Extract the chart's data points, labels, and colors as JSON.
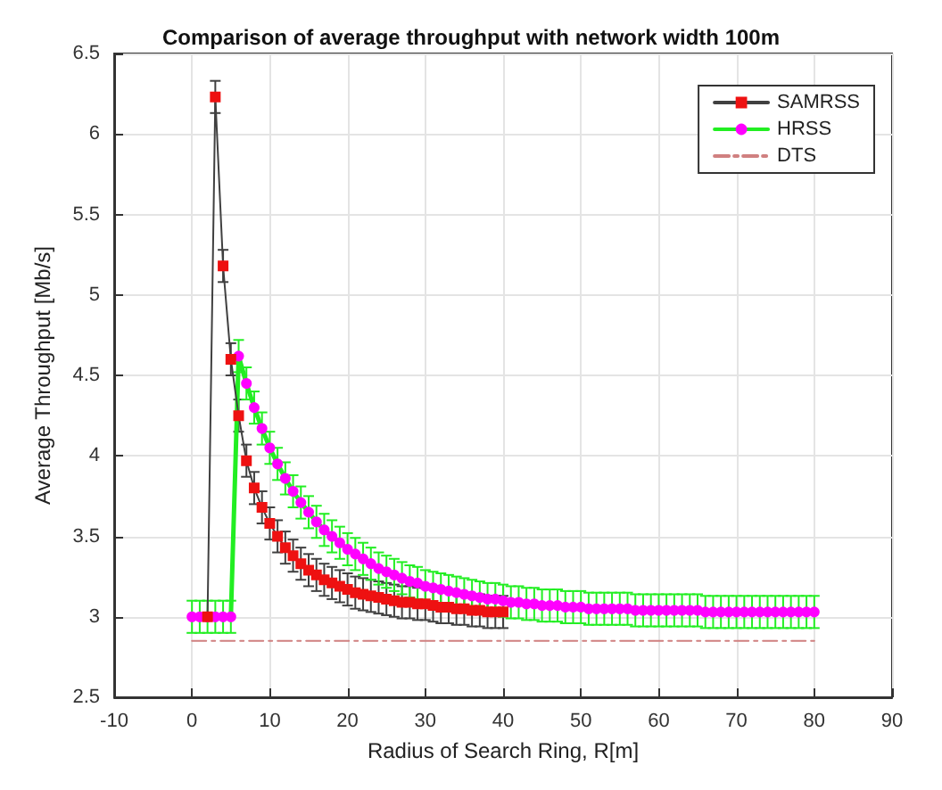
{
  "chart_data": {
    "type": "line",
    "title": "Comparison of average throughput with network width 100m",
    "xlabel": "Radius of Search Ring, R[m]",
    "ylabel": "Average Throughput [Mb/s]",
    "xlim": [
      -10,
      90
    ],
    "xticks": [
      -10,
      0,
      10,
      20,
      30,
      40,
      50,
      60,
      70,
      80,
      90
    ],
    "ylim": [
      2.5,
      6.5
    ],
    "yticks": [
      2.5,
      3,
      3.5,
      4,
      4.5,
      5,
      5.5,
      6,
      6.5
    ],
    "grid": true,
    "legend": "top right",
    "series": [
      {
        "name": "SAMRSS",
        "color": "#ee1111",
        "marker": "square",
        "line_style": "solid",
        "x": [
          2,
          3,
          4,
          5,
          6,
          7,
          8,
          9,
          10,
          11,
          12,
          13,
          14,
          15,
          16,
          17,
          18,
          19,
          20,
          21,
          22,
          23,
          24,
          25,
          26,
          27,
          28,
          29,
          30,
          31,
          32,
          33,
          34,
          35,
          36,
          37,
          38,
          39,
          40
        ],
        "values": [
          3.0,
          6.23,
          5.18,
          4.6,
          4.25,
          3.97,
          3.8,
          3.68,
          3.58,
          3.5,
          3.43,
          3.38,
          3.33,
          3.29,
          3.26,
          3.23,
          3.21,
          3.19,
          3.17,
          3.15,
          3.14,
          3.13,
          3.12,
          3.11,
          3.1,
          3.09,
          3.09,
          3.08,
          3.08,
          3.07,
          3.06,
          3.06,
          3.05,
          3.05,
          3.04,
          3.04,
          3.03,
          3.03,
          3.03
        ],
        "errors": [
          null,
          0.1,
          0.1,
          0.1,
          0.1,
          0.1,
          0.1,
          0.1,
          0.1,
          0.1,
          0.1,
          0.1,
          0.1,
          0.1,
          0.1,
          0.1,
          0.1,
          0.1,
          0.1,
          0.1,
          0.1,
          0.1,
          0.1,
          0.1,
          0.1,
          0.1,
          0.1,
          0.1,
          0.1,
          0.1,
          0.1,
          0.1,
          0.1,
          0.1,
          0.1,
          0.1,
          0.1,
          0.1,
          0.1
        ]
      },
      {
        "name": "HRSS",
        "color": "#ff00ff",
        "marker": "circle",
        "line_style": "solid",
        "x": [
          0,
          1,
          2,
          3,
          4,
          5,
          6,
          7,
          8,
          9,
          10,
          11,
          12,
          13,
          14,
          15,
          16,
          17,
          18,
          19,
          20,
          21,
          22,
          23,
          24,
          25,
          26,
          27,
          28,
          29,
          30,
          31,
          32,
          33,
          34,
          35,
          36,
          37,
          38,
          39,
          40,
          41,
          42,
          43,
          44,
          45,
          46,
          47,
          48,
          49,
          50,
          51,
          52,
          53,
          54,
          55,
          56,
          57,
          58,
          59,
          60,
          61,
          62,
          63,
          64,
          65,
          66,
          67,
          68,
          69,
          70,
          71,
          72,
          73,
          74,
          75,
          76,
          77,
          78,
          79,
          80
        ],
        "values": [
          3.0,
          3.0,
          3.0,
          3.0,
          3.0,
          3.0,
          4.62,
          4.45,
          4.3,
          4.17,
          4.05,
          3.95,
          3.86,
          3.78,
          3.71,
          3.65,
          3.59,
          3.54,
          3.5,
          3.46,
          3.42,
          3.39,
          3.36,
          3.33,
          3.3,
          3.28,
          3.26,
          3.24,
          3.22,
          3.21,
          3.19,
          3.18,
          3.17,
          3.16,
          3.15,
          3.14,
          3.13,
          3.12,
          3.11,
          3.11,
          3.1,
          3.09,
          3.09,
          3.08,
          3.08,
          3.07,
          3.07,
          3.07,
          3.06,
          3.06,
          3.06,
          3.05,
          3.05,
          3.05,
          3.05,
          3.05,
          3.05,
          3.04,
          3.04,
          3.04,
          3.04,
          3.04,
          3.04,
          3.04,
          3.04,
          3.04,
          3.03,
          3.03,
          3.03,
          3.03,
          3.03,
          3.03,
          3.03,
          3.03,
          3.03,
          3.03,
          3.03,
          3.03,
          3.03,
          3.03,
          3.03
        ],
        "errors": [
          0.1,
          0.1,
          0.1,
          0.1,
          0.1,
          0.1,
          0.1,
          0.1,
          0.1,
          0.1,
          0.1,
          0.1,
          0.1,
          0.1,
          0.1,
          0.1,
          0.1,
          0.1,
          0.1,
          0.1,
          0.1,
          0.1,
          0.1,
          0.1,
          0.1,
          0.1,
          0.1,
          0.1,
          0.1,
          0.1,
          0.1,
          0.1,
          0.1,
          0.1,
          0.1,
          0.1,
          0.1,
          0.1,
          0.1,
          0.1,
          0.1,
          0.1,
          0.1,
          0.1,
          0.1,
          0.1,
          0.1,
          0.1,
          0.1,
          0.1,
          0.1,
          0.1,
          0.1,
          0.1,
          0.1,
          0.1,
          0.1,
          0.1,
          0.1,
          0.1,
          0.1,
          0.1,
          0.1,
          0.1,
          0.1,
          0.1,
          0.1,
          0.1,
          0.1,
          0.1,
          0.1,
          0.1,
          0.1,
          0.1,
          0.1,
          0.1,
          0.1,
          0.1,
          0.1,
          0.1,
          0.1
        ]
      },
      {
        "name": "DTS",
        "color": "#d08080",
        "marker": "none",
        "line_style": "dashed",
        "x": [
          0,
          80
        ],
        "values": [
          2.85,
          2.85
        ]
      }
    ]
  }
}
